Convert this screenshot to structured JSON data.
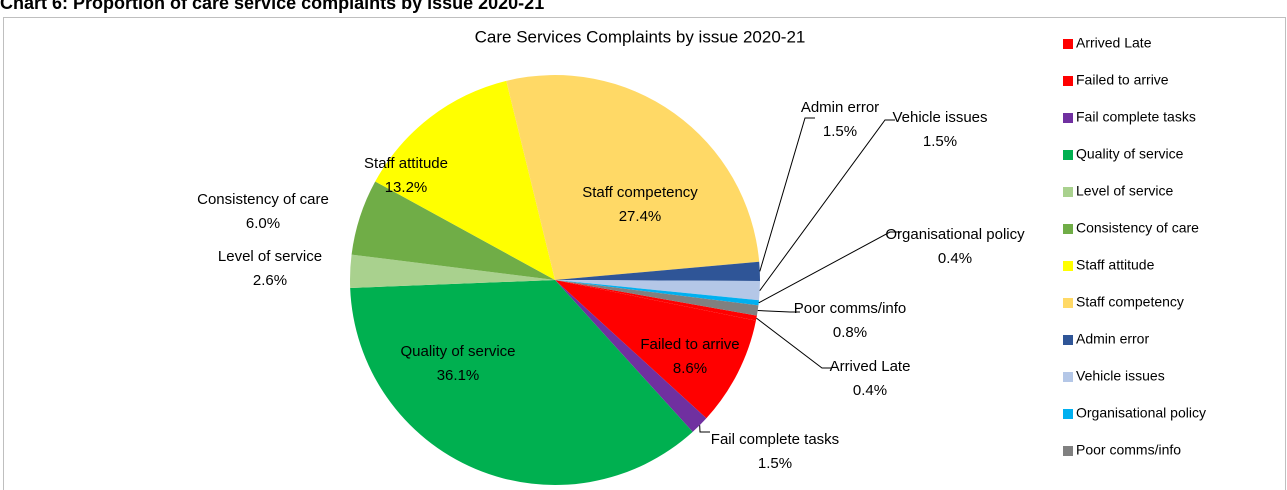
{
  "heading": "Chart 6: Proportion of care service complaints by issue 2020-21",
  "chart_data": {
    "type": "pie",
    "title": "Care Services Complaints by issue 2020-21",
    "categories": [
      "Arrived Late",
      "Failed to arrive",
      "Fail complete tasks",
      "Quality of service",
      "Level of service",
      "Consistency of care",
      "Staff attitude",
      "Staff competency",
      "Admin error",
      "Vehicle issues",
      "Organisational policy",
      "Poor comms/info"
    ],
    "values": [
      0.4,
      8.6,
      1.5,
      36.1,
      2.6,
      6.0,
      13.2,
      27.4,
      1.5,
      1.5,
      0.4,
      0.8
    ],
    "value_labels": [
      "0.4%",
      "8.6%",
      "1.5%",
      "36.1%",
      "2.6%",
      "6.0%",
      "13.2%",
      "27.4%",
      "1.5%",
      "1.5%",
      "0.4%",
      "0.8%"
    ],
    "colors": [
      "#ff0000",
      "#ff0000",
      "#7030a0",
      "#00b050",
      "#a9d18e",
      "#70ad47",
      "#ffff00",
      "#ffd966",
      "#2f5597",
      "#b4c7e7",
      "#00b0f0",
      "#808080"
    ],
    "legend": "right"
  }
}
